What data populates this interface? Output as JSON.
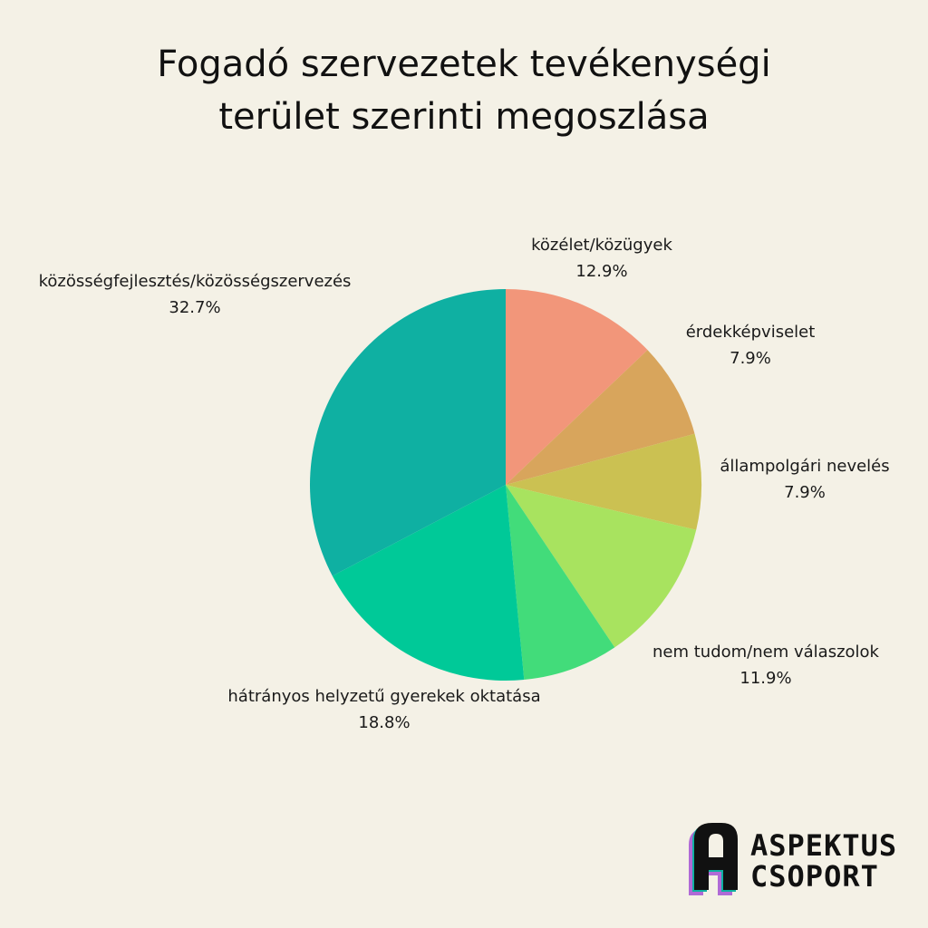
{
  "chart_data": {
    "type": "pie",
    "title": [
      "Fogadó szervezetek tevékenységi",
      "terület szerinti megoszlása"
    ],
    "slices": [
      {
        "label": "közélet/közügyek",
        "value": 12.9,
        "display": "12.9%",
        "color": "#f2967a"
      },
      {
        "label": "érdekképviselet",
        "value": 7.9,
        "display": "7.9%",
        "color": "#d8a55c"
      },
      {
        "label": "állampolgári nevelés",
        "value": 7.9,
        "display": "7.9%",
        "color": "#cbc152"
      },
      {
        "label": "nem tudom/nem válaszolok",
        "value": 11.9,
        "display": "11.9%",
        "color": "#a8e35f"
      },
      {
        "label": "",
        "value": 7.9,
        "display": "",
        "color": "#42dc7a"
      },
      {
        "label": "hátrányos helyzetű gyerekek oktatása",
        "value": 18.8,
        "display": "18.8%",
        "color": "#00c998"
      },
      {
        "label": "közösségfejlesztés/közösségszervezés",
        "value": 32.7,
        "display": "32.7%",
        "color": "#0fb0a2"
      }
    ]
  },
  "logo": {
    "line1": "ASPEKTUS",
    "line2": "CSOPORT",
    "colors": {
      "teal": "#0fb0a2",
      "purple": "#b06ad6",
      "dark": "#111111"
    }
  }
}
